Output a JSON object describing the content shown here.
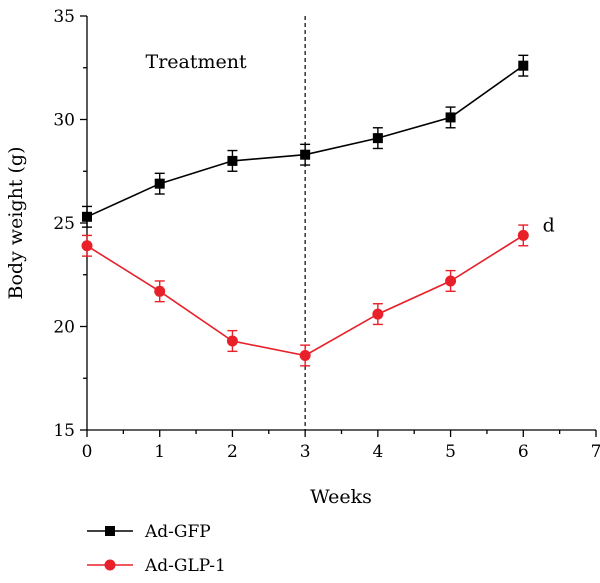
{
  "chart_data": {
    "type": "line",
    "xlabel": "Weeks",
    "ylabel": "Body weight (g)",
    "xlim": [
      0,
      7
    ],
    "ylim": [
      15,
      35
    ],
    "x_ticks": [
      0,
      1,
      2,
      3,
      4,
      5,
      6,
      7
    ],
    "y_ticks": [
      15,
      20,
      25,
      30,
      35
    ],
    "grid": false,
    "legend_placement": "bottom-left",
    "vertical_reference_line": {
      "x": 3,
      "style": "dashed"
    },
    "annotations": [
      {
        "text": "Treatment",
        "x": 1.5,
        "y": 32.5
      },
      {
        "text": "d",
        "x": 6.35,
        "y": 24.6
      }
    ],
    "series": [
      {
        "name": "Ad-GFP",
        "marker": "square",
        "color": "#000000",
        "x": [
          0,
          1,
          2,
          3,
          4,
          5,
          6
        ],
        "y": [
          25.3,
          26.9,
          28.0,
          28.3,
          29.1,
          30.1,
          32.6
        ],
        "error": [
          0.5,
          0.5,
          0.5,
          0.5,
          0.5,
          0.5,
          0.5
        ]
      },
      {
        "name": "Ad-GLP-1",
        "marker": "circle",
        "color": "#e8202a",
        "x": [
          0,
          1,
          2,
          3,
          4,
          5,
          6
        ],
        "y": [
          23.9,
          21.7,
          19.3,
          18.6,
          20.6,
          22.2,
          24.4
        ],
        "error": [
          0.5,
          0.5,
          0.5,
          0.5,
          0.5,
          0.5,
          0.5
        ]
      }
    ]
  }
}
